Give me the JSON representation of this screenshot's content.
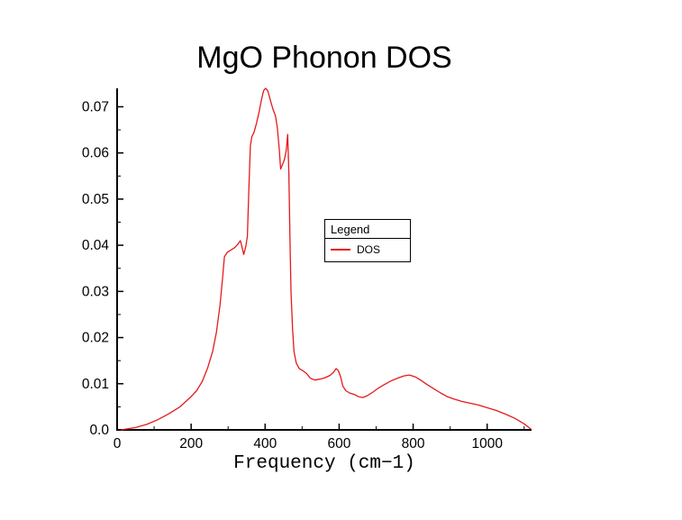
{
  "chart_data": {
    "type": "line",
    "title": "MgO Phonon DOS",
    "xlabel": "Frequency (cm−1)",
    "ylabel": "",
    "xlim": [
      0,
      1120
    ],
    "ylim": [
      0,
      0.074
    ],
    "grid": false,
    "x_tick_values": [
      0,
      200,
      400,
      600,
      800,
      1000
    ],
    "x_tick_labels": [
      "0",
      "200",
      "400",
      "600",
      "800",
      "1000"
    ],
    "y_tick_values": [
      0,
      0.01,
      0.02,
      0.03,
      0.04,
      0.05,
      0.06,
      0.07
    ],
    "y_tick_labels": [
      "0.0",
      "0.01",
      "0.02",
      "0.03",
      "0.04",
      "0.05",
      "0.06",
      "0.07"
    ],
    "axis_color": "#000000",
    "legend": {
      "title": "Legend",
      "position": "middle-right",
      "entries": [
        {
          "label": "DOS",
          "color": "#e41a1c"
        }
      ]
    },
    "series": [
      {
        "name": "DOS",
        "color": "#e41a1c",
        "points": [
          [
            10,
            0
          ],
          [
            50,
            0.0005
          ],
          [
            80,
            0.0012
          ],
          [
            110,
            0.0022
          ],
          [
            140,
            0.0035
          ],
          [
            170,
            0.005
          ],
          [
            200,
            0.0072
          ],
          [
            215,
            0.0085
          ],
          [
            230,
            0.0105
          ],
          [
            245,
            0.0135
          ],
          [
            258,
            0.017
          ],
          [
            268,
            0.021
          ],
          [
            278,
            0.027
          ],
          [
            285,
            0.033
          ],
          [
            290,
            0.0375
          ],
          [
            298,
            0.0385
          ],
          [
            308,
            0.039
          ],
          [
            318,
            0.0395
          ],
          [
            326,
            0.0402
          ],
          [
            333,
            0.041
          ],
          [
            338,
            0.0395
          ],
          [
            342,
            0.038
          ],
          [
            348,
            0.0398
          ],
          [
            352,
            0.042
          ],
          [
            356,
            0.052
          ],
          [
            360,
            0.0615
          ],
          [
            364,
            0.0635
          ],
          [
            370,
            0.0645
          ],
          [
            377,
            0.0665
          ],
          [
            384,
            0.069
          ],
          [
            390,
            0.0715
          ],
          [
            396,
            0.0735
          ],
          [
            401,
            0.074
          ],
          [
            407,
            0.0735
          ],
          [
            414,
            0.0715
          ],
          [
            421,
            0.0695
          ],
          [
            428,
            0.068
          ],
          [
            433,
            0.0655
          ],
          [
            438,
            0.061
          ],
          [
            442,
            0.0565
          ],
          [
            447,
            0.0575
          ],
          [
            452,
            0.0585
          ],
          [
            457,
            0.0605
          ],
          [
            461,
            0.064
          ],
          [
            464,
            0.056
          ],
          [
            467,
            0.042
          ],
          [
            470,
            0.03
          ],
          [
            474,
            0.022
          ],
          [
            478,
            0.017
          ],
          [
            484,
            0.0145
          ],
          [
            492,
            0.0133
          ],
          [
            502,
            0.0128
          ],
          [
            512,
            0.0122
          ],
          [
            522,
            0.0112
          ],
          [
            534,
            0.0108
          ],
          [
            548,
            0.011
          ],
          [
            562,
            0.0113
          ],
          [
            575,
            0.0118
          ],
          [
            585,
            0.0125
          ],
          [
            592,
            0.0133
          ],
          [
            598,
            0.0128
          ],
          [
            604,
            0.0115
          ],
          [
            610,
            0.0095
          ],
          [
            618,
            0.0085
          ],
          [
            628,
            0.008
          ],
          [
            640,
            0.0077
          ],
          [
            652,
            0.0072
          ],
          [
            664,
            0.007
          ],
          [
            676,
            0.0074
          ],
          [
            690,
            0.0081
          ],
          [
            705,
            0.009
          ],
          [
            722,
            0.0098
          ],
          [
            740,
            0.0106
          ],
          [
            758,
            0.0112
          ],
          [
            775,
            0.0117
          ],
          [
            790,
            0.0119
          ],
          [
            805,
            0.0115
          ],
          [
            820,
            0.0108
          ],
          [
            838,
            0.0098
          ],
          [
            856,
            0.0089
          ],
          [
            874,
            0.008
          ],
          [
            892,
            0.0072
          ],
          [
            910,
            0.0067
          ],
          [
            930,
            0.0062
          ],
          [
            952,
            0.0058
          ],
          [
            975,
            0.0054
          ],
          [
            1000,
            0.0048
          ],
          [
            1025,
            0.0042
          ],
          [
            1050,
            0.0034
          ],
          [
            1075,
            0.0025
          ],
          [
            1100,
            0.0013
          ],
          [
            1118,
            0.0002
          ]
        ]
      }
    ]
  }
}
